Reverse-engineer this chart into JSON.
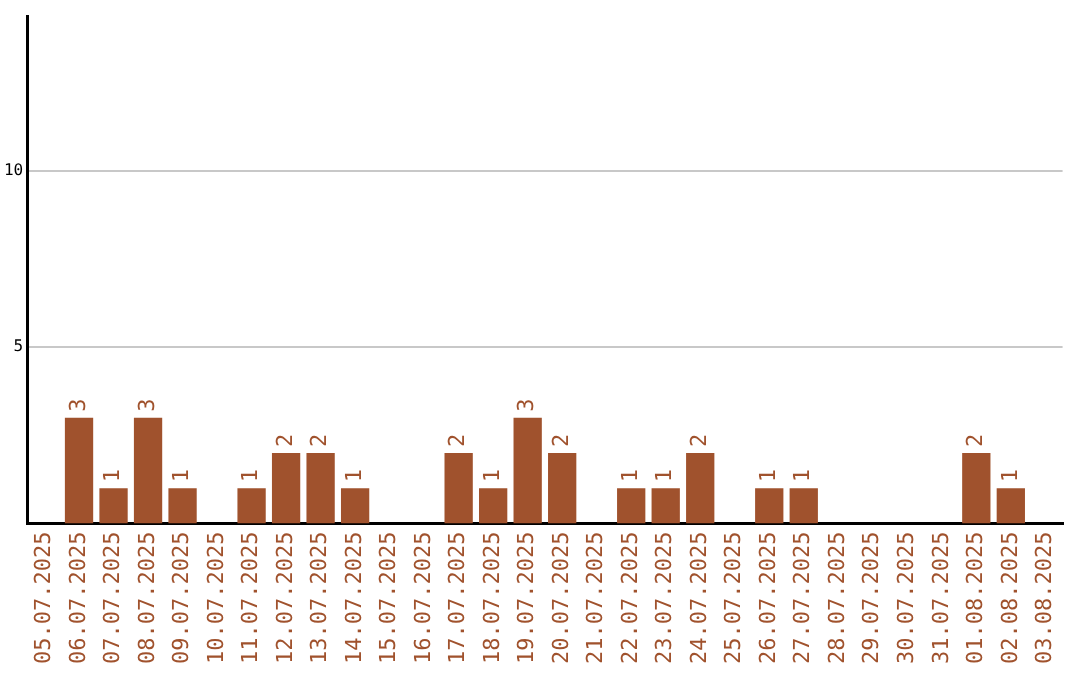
{
  "chart_data": {
    "type": "bar",
    "categories": [
      "05.07.2025",
      "06.07.2025",
      "07.07.2025",
      "08.07.2025",
      "09.07.2025",
      "10.07.2025",
      "11.07.2025",
      "12.07.2025",
      "13.07.2025",
      "14.07.2025",
      "15.07.2025",
      "16.07.2025",
      "17.07.2025",
      "18.07.2025",
      "19.07.2025",
      "20.07.2025",
      "21.07.2025",
      "22.07.2025",
      "23.07.2025",
      "24.07.2025",
      "25.07.2025",
      "26.07.2025",
      "27.07.2025",
      "28.07.2025",
      "29.07.2025",
      "30.07.2025",
      "31.07.2025",
      "01.08.2025",
      "02.08.2025",
      "03.08.2025"
    ],
    "values": [
      0,
      3,
      1,
      3,
      1,
      0,
      1,
      2,
      2,
      1,
      0,
      0,
      2,
      1,
      3,
      2,
      0,
      1,
      1,
      2,
      0,
      1,
      1,
      0,
      0,
      0,
      0,
      2,
      1,
      0
    ],
    "value_labels": [
      null,
      "3",
      "1",
      "3",
      "1",
      null,
      "1",
      "2",
      "2",
      "1",
      null,
      null,
      "2",
      "1",
      "3",
      "2",
      null,
      "1",
      "1",
      "2",
      null,
      "1",
      "1",
      null,
      null,
      null,
      null,
      "2",
      "1",
      null
    ],
    "color": "#a0522d",
    "ylim": [
      0,
      14.4
    ],
    "yticks": [
      5,
      10
    ],
    "grid": "y",
    "legend": false
  }
}
